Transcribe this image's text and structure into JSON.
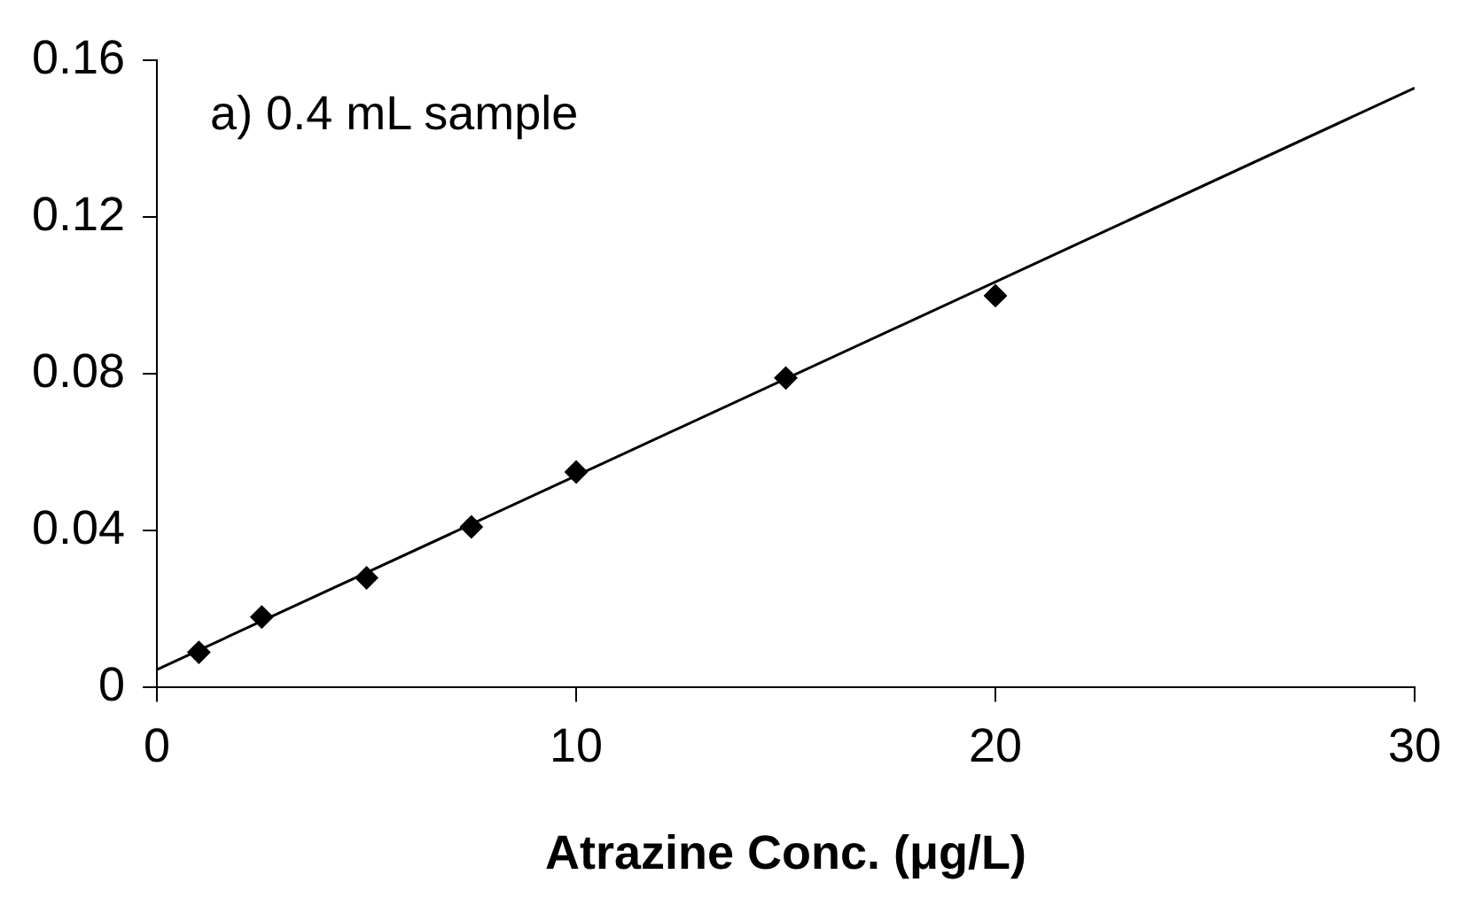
{
  "chart_data": {
    "type": "scatter",
    "xlabel": "Atrazine Conc. (μg/L)",
    "annotations": [
      "a) 0.4 mL sample"
    ],
    "series": [
      {
        "type": "scatter",
        "color": "#000000",
        "x": [
          1,
          2.5,
          5,
          7.5,
          10,
          15,
          20
        ],
        "values": [
          0.009,
          0.018,
          0.028,
          0.041,
          0.055,
          0.079,
          0.1
        ],
        "marker": "diamond"
      },
      {
        "type": "line",
        "color": "#000000",
        "x": [
          0,
          30
        ],
        "values": [
          0.0046,
          0.153
        ],
        "marker": "none",
        "line_style": "solid"
      }
    ],
    "xlim": [
      0,
      30
    ],
    "xticks": [
      0,
      10,
      20,
      30
    ],
    "ylim": [
      0,
      0.16
    ],
    "yticks": [
      0,
      0.04,
      0.08,
      0.12,
      0.16
    ],
    "grid": false,
    "legend": false
  }
}
